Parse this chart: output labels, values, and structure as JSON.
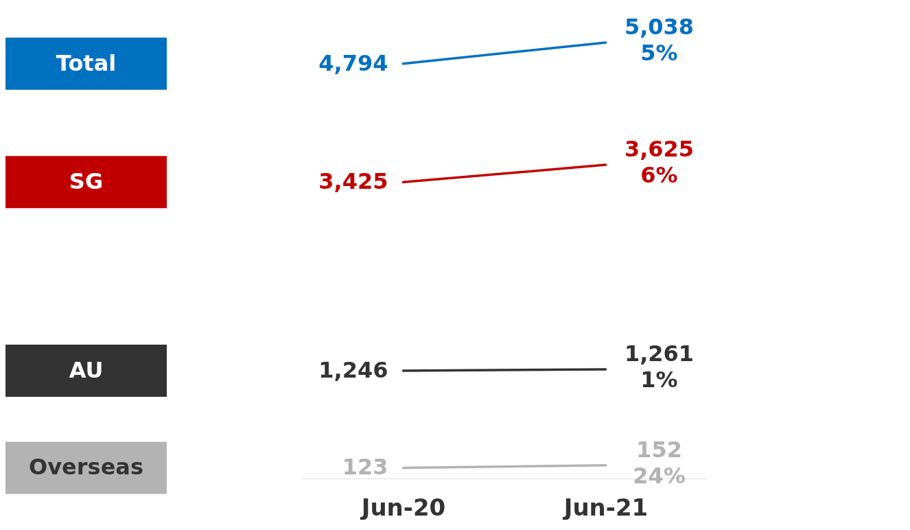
{
  "chart_data": {
    "type": "line",
    "categories": [
      "Jun-20",
      "Jun-21"
    ],
    "legend": "left",
    "grid": false,
    "series": [
      {
        "name": "Total",
        "color": "#0070c0",
        "values": [
          4794,
          5038
        ],
        "value_labels": [
          "4,794",
          "5,038"
        ]
      },
      {
        "name": "SG",
        "color": "#c00000",
        "values": [
          3425,
          3625
        ],
        "value_labels": [
          "3,425",
          "3,625"
        ]
      },
      {
        "name": "AU",
        "color": "#333333",
        "values": [
          1246,
          1261
        ],
        "value_labels": [
          "1,246",
          "1,261"
        ]
      },
      {
        "name": "Overseas",
        "color": "#b3b3b3",
        "values": [
          123,
          152
        ],
        "value_labels": [
          "123",
          "152"
        ]
      }
    ],
    "annotations": [
      {
        "text": "5%",
        "x": "Jun-21",
        "y": 5038
      },
      {
        "text": "6%",
        "x": "Jun-21",
        "y": 3625
      },
      {
        "text": "1%",
        "x": "Jun-21",
        "y": 1261
      },
      {
        "text": "24%",
        "x": "Jun-21",
        "y": 152
      }
    ]
  }
}
